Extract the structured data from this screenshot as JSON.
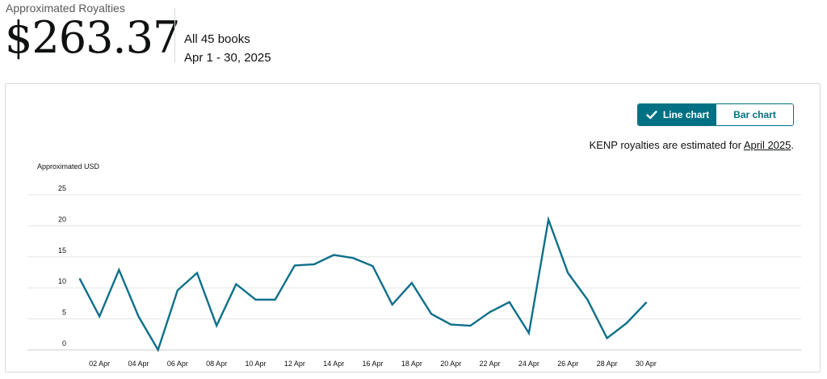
{
  "header": {
    "label": "Approximated Royalties",
    "amount": "$263.37",
    "scope": "All 45 books",
    "date_range": "Apr 1 - 30, 2025"
  },
  "toggle": {
    "line_label": "Line chart",
    "bar_label": "Bar chart",
    "selected": "line"
  },
  "note": {
    "prefix": "KENP royalties are estimated for ",
    "link": "April 2025",
    "suffix": "."
  },
  "colors": {
    "accent": "#007185",
    "line": "#0e6f8a",
    "grid": "#e3e6e6"
  },
  "chart_data": {
    "type": "line",
    "ylabel": "Approximated USD",
    "xlabel": "",
    "ylim": [
      0,
      25
    ],
    "yticks": [
      0,
      5,
      10,
      15,
      20,
      25
    ],
    "xtick_labels": [
      "02 Apr",
      "04 Apr",
      "06 Apr",
      "08 Apr",
      "10 Apr",
      "12 Apr",
      "14 Apr",
      "16 Apr",
      "18 Apr",
      "20 Apr",
      "22 Apr",
      "24 Apr",
      "26 Apr",
      "28 Apr",
      "30 Apr"
    ],
    "x": [
      1,
      2,
      3,
      4,
      5,
      6,
      7,
      8,
      9,
      10,
      11,
      12,
      13,
      14,
      15,
      16,
      17,
      18,
      19,
      20,
      21,
      22,
      23,
      24,
      25,
      26,
      27,
      28,
      29,
      30
    ],
    "series": [
      {
        "values": [
          11.4,
          5.4,
          12.9,
          5.4,
          0,
          9.6,
          12.4,
          3.9,
          10.6,
          8.1,
          8.1,
          13.6,
          13.8,
          15.3,
          14.8,
          13.5,
          7.3,
          10.8,
          5.8,
          4.1,
          3.9,
          6.1,
          7.7,
          2.7,
          21.0,
          12.4,
          8.1,
          1.9,
          4.3,
          7.6
        ]
      }
    ],
    "grid": true
  }
}
